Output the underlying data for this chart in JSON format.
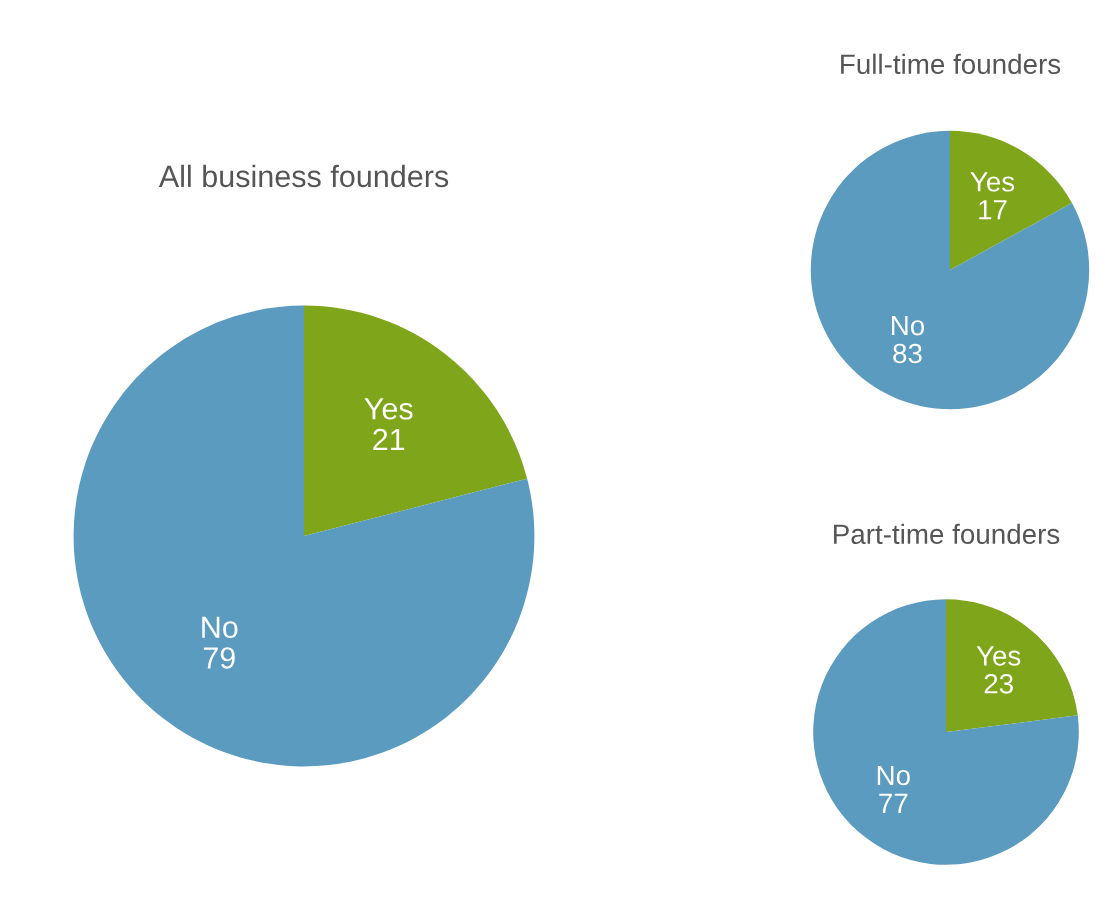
{
  "chart_data": [
    {
      "type": "pie",
      "title": "All business founders",
      "categories": [
        "Yes",
        "No"
      ],
      "values": [
        21,
        79
      ],
      "colors": [
        "#7fa51a",
        "#5b9bbf"
      ],
      "data_labels": true
    },
    {
      "type": "pie",
      "title": "Full-time founders",
      "categories": [
        "Yes",
        "No"
      ],
      "values": [
        17,
        83
      ],
      "colors": [
        "#7fa51a",
        "#5b9bbf"
      ],
      "data_labels": true
    },
    {
      "type": "pie",
      "title": "Part-time founders",
      "categories": [
        "Yes",
        "No"
      ],
      "values": [
        23,
        77
      ],
      "colors": [
        "#7fa51a",
        "#5b9bbf"
      ],
      "data_labels": true
    }
  ]
}
